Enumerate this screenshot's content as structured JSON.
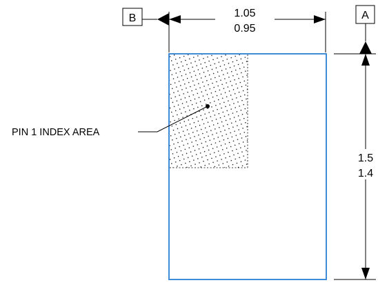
{
  "datums": {
    "top_datum": "B",
    "right_datum": "A"
  },
  "dimensions": {
    "width_max": "1.05",
    "width_min": "0.95",
    "height_max": "1.5",
    "height_min": "1.4"
  },
  "callout": {
    "pin1_label": "PIN 1 INDEX AREA"
  },
  "colors": {
    "outline": "#2a7fd4",
    "line": "#000000"
  }
}
